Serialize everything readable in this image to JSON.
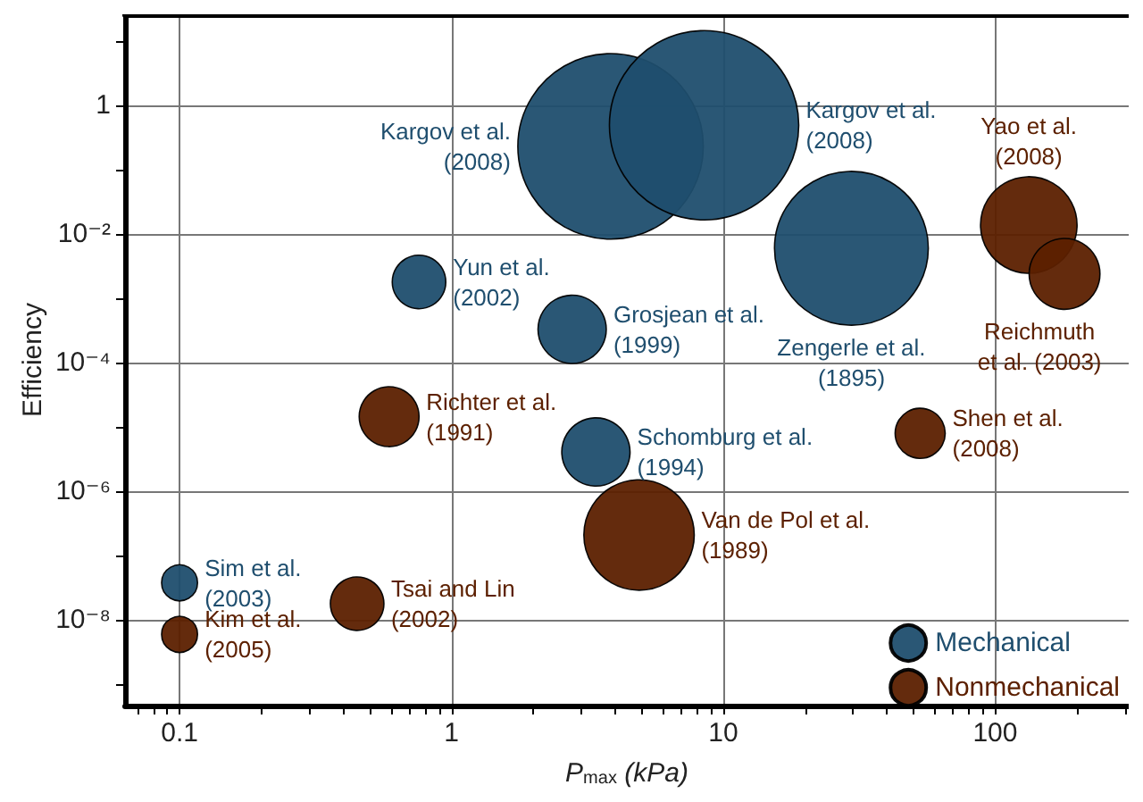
{
  "chart_data": {
    "type": "bubble",
    "xlabel": "P$_{max}$ (kPa)",
    "ylabel": "Efficiency",
    "log": "xy",
    "grid": true,
    "legend": "bottom right",
    "marker": "circle",
    "xlim": [
      0.063,
      310
    ],
    "ylim": [
      4.7e-10,
      26
    ],
    "xticks": [
      {
        "value": 0.07,
        "label": null
      },
      {
        "value": 0.08,
        "label": null
      },
      {
        "value": 0.09,
        "label": null
      },
      {
        "value": 0.1,
        "label": "0.1"
      },
      {
        "value": 0.2,
        "label": null
      },
      {
        "value": 0.3,
        "label": null
      },
      {
        "value": 0.4,
        "label": null
      },
      {
        "value": 0.5,
        "label": null
      },
      {
        "value": 0.6,
        "label": null
      },
      {
        "value": 0.7,
        "label": null
      },
      {
        "value": 0.8,
        "label": null
      },
      {
        "value": 0.9,
        "label": null
      },
      1,
      {
        "value": 2,
        "label": null
      },
      {
        "value": 3,
        "label": null
      },
      {
        "value": 4,
        "label": null
      },
      {
        "value": 5,
        "label": null
      },
      {
        "value": 6,
        "label": null
      },
      {
        "value": 7,
        "label": null
      },
      {
        "value": 8,
        "label": null
      },
      {
        "value": 9,
        "label": null
      },
      10,
      {
        "value": 20,
        "label": null
      },
      {
        "value": 30,
        "label": null
      },
      {
        "value": 40,
        "label": null
      },
      {
        "value": 50,
        "label": null
      },
      {
        "value": 60,
        "label": null
      },
      {
        "value": 70,
        "label": null
      },
      {
        "value": 80,
        "label": null
      },
      {
        "value": 90,
        "label": null
      },
      100,
      {
        "value": 200,
        "label": null
      },
      {
        "value": 300,
        "label": null
      }
    ],
    "yticks": [
      {
        "value": 1e-09,
        "label": null
      },
      {
        "value": 1e-08,
        "label": "10⁻⁸"
      },
      {
        "value": 1e-07,
        "label": null
      },
      {
        "value": 1e-06,
        "label": "10⁻⁶"
      },
      {
        "value": 1e-05,
        "label": null
      },
      {
        "value": 0.0001,
        "label": "10⁻⁴"
      },
      {
        "value": 0.001,
        "label": null
      },
      {
        "value": 0.01,
        "label": "10⁻²"
      },
      {
        "value": 0.1,
        "label": null
      },
      1,
      {
        "value": 10,
        "label": null
      }
    ],
    "series": [
      {
        "name": "Mechanical",
        "color": "#1f4e6e",
        "x": [
          3.85,
          8.5,
          29.6,
          0.76,
          2.78,
          3.4,
          0.1
        ],
        "values": [
          0.23,
          0.49,
          0.006,
          0.0018,
          0.00033,
          4.1e-06,
          3.8e-08
        ],
        "sizes": [
          0.96,
          1,
          0.66,
          0.08,
          0.13,
          0.13,
          0.036
        ]
      },
      {
        "name": "Nonmechanical",
        "color": "#5c2000",
        "x": [
          133,
          180,
          0.59,
          53,
          4.9,
          0.45,
          0.1
        ],
        "values": [
          0.0138,
          0.0024,
          1.45e-05,
          8e-06,
          2.1e-07,
          1.8e-08,
          6e-09
        ],
        "sizes": [
          0.26,
          0.14,
          0.1,
          0.07,
          0.34,
          0.08,
          0.036
        ]
      }
    ],
    "annotations": [
      "Kargov et al.\n(2008)",
      "Kargov et al.\n(2008)",
      {
        "text": "Yao et al.\n(2008)",
        "x": 133,
        "y": 0.0138
      },
      "Zengerle et al.\n(1895)",
      {
        "text": "Reichmuth\net al. (2003)",
        "x": 180,
        "y": 0.0024
      },
      {
        "text": "Yun et al.\n(2002)",
        "x": 0.76,
        "y": 0.0018
      },
      {
        "text": "Grosjean et al.\n(1999)",
        "x": 2.78,
        "y": 0.00033
      },
      {
        "text": "Richter et al.\n(1991)",
        "x": 0.59,
        "y": 1.45e-05
      },
      {
        "text": "Schomburg et al.\n(1994)",
        "x": 3.4,
        "y": 4.1e-06
      },
      {
        "text": "Shen et al.\n(2008)",
        "x": 53,
        "y": 8e-06
      },
      {
        "text": "Van de Pol et al.\n(1989)",
        "x": 4.9,
        "y": 2.1e-07
      },
      {
        "text": "Sim et al.\n(2003)",
        "x": 0.1,
        "y": 3.8e-08
      },
      {
        "text": "Tsai and Lin\n(2002)",
        "x": 0.45,
        "y": 1.8e-08
      },
      {
        "text": "Kim et al.\n(2005)",
        "x": 0.1,
        "y": 6e-09
      }
    ]
  }
}
